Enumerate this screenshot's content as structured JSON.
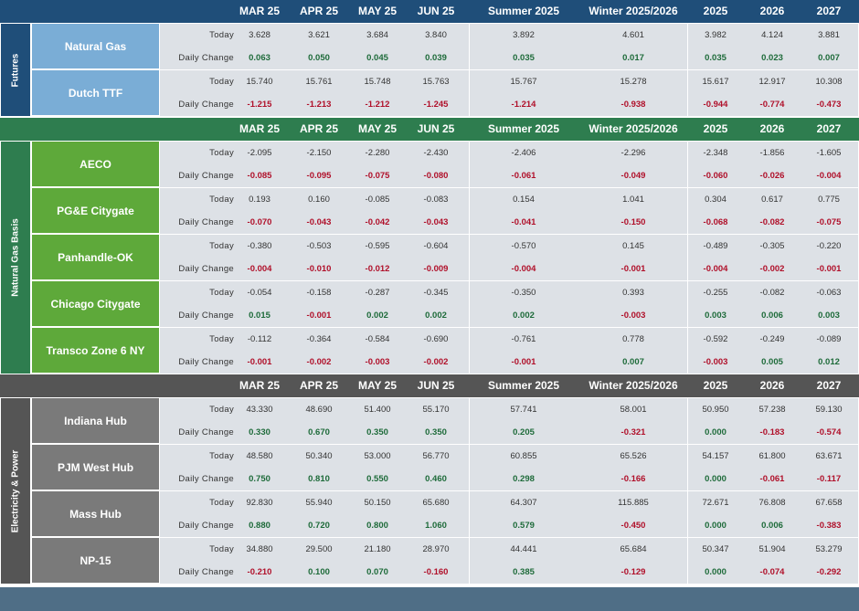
{
  "columns": [
    "MAR 25",
    "APR 25",
    "MAY 25",
    "JUN 25",
    "Summer 2025",
    "Winter 2025/2026",
    "2025",
    "2026",
    "2027"
  ],
  "row_labels": {
    "today": "Today",
    "change": "Daily Change"
  },
  "colors": {
    "futures_header": "#1f4e79",
    "futures_name": "#7aadd6",
    "basis_header": "#2e7d4f",
    "basis_name": "#5ea93a",
    "power_header": "#555555",
    "power_name": "#7a7a7a",
    "positive": "#1e6b3a",
    "negative": "#b0102a",
    "footer": "#4f6e86"
  },
  "chart_data": {
    "type": "table",
    "sections": [
      {
        "title": "Futures",
        "rows": [
          {
            "name": "Natural Gas",
            "today": [
              "3.628",
              "3.621",
              "3.684",
              "3.840",
              "3.892",
              "4.601",
              "3.982",
              "4.124",
              "3.881"
            ],
            "change": [
              "0.063",
              "0.050",
              "0.045",
              "0.039",
              "0.035",
              "0.017",
              "0.035",
              "0.023",
              "0.007"
            ]
          },
          {
            "name": "Dutch TTF",
            "today": [
              "15.740",
              "15.761",
              "15.748",
              "15.763",
              "15.767",
              "15.278",
              "15.617",
              "12.917",
              "10.308"
            ],
            "change": [
              "-1.215",
              "-1.213",
              "-1.212",
              "-1.245",
              "-1.214",
              "-0.938",
              "-0.944",
              "-0.774",
              "-0.473"
            ]
          }
        ]
      },
      {
        "title": "Natural Gas Basis",
        "rows": [
          {
            "name": "AECO",
            "today": [
              "-2.095",
              "-2.150",
              "-2.280",
              "-2.430",
              "-2.406",
              "-2.296",
              "-2.348",
              "-1.856",
              "-1.605"
            ],
            "change": [
              "-0.085",
              "-0.095",
              "-0.075",
              "-0.080",
              "-0.061",
              "-0.049",
              "-0.060",
              "-0.026",
              "-0.004"
            ]
          },
          {
            "name": "PG&E Citygate",
            "today": [
              "0.193",
              "0.160",
              "-0.085",
              "-0.083",
              "0.154",
              "1.041",
              "0.304",
              "0.617",
              "0.775"
            ],
            "change": [
              "-0.070",
              "-0.043",
              "-0.042",
              "-0.043",
              "-0.041",
              "-0.150",
              "-0.068",
              "-0.082",
              "-0.075"
            ]
          },
          {
            "name": "Panhandle-OK",
            "today": [
              "-0.380",
              "-0.503",
              "-0.595",
              "-0.604",
              "-0.570",
              "0.145",
              "-0.489",
              "-0.305",
              "-0.220"
            ],
            "change": [
              "-0.004",
              "-0.010",
              "-0.012",
              "-0.009",
              "-0.004",
              "-0.001",
              "-0.004",
              "-0.002",
              "-0.001"
            ]
          },
          {
            "name": "Chicago Citygate",
            "today": [
              "-0.054",
              "-0.158",
              "-0.287",
              "-0.345",
              "-0.350",
              "0.393",
              "-0.255",
              "-0.082",
              "-0.063"
            ],
            "change": [
              "0.015",
              "-0.001",
              "0.002",
              "0.002",
              "0.002",
              "-0.003",
              "0.003",
              "0.006",
              "0.003"
            ]
          },
          {
            "name": "Transco Zone 6 NY",
            "today": [
              "-0.112",
              "-0.364",
              "-0.584",
              "-0.690",
              "-0.761",
              "0.778",
              "-0.592",
              "-0.249",
              "-0.089"
            ],
            "change": [
              "-0.001",
              "-0.002",
              "-0.003",
              "-0.002",
              "-0.001",
              "0.007",
              "-0.003",
              "0.005",
              "0.012"
            ]
          }
        ]
      },
      {
        "title": "Electricity & Power",
        "rows": [
          {
            "name": "Indiana Hub",
            "today": [
              "43.330",
              "48.690",
              "51.400",
              "55.170",
              "57.741",
              "58.001",
              "50.950",
              "57.238",
              "59.130"
            ],
            "change": [
              "0.330",
              "0.670",
              "0.350",
              "0.350",
              "0.205",
              "-0.321",
              "0.000",
              "-0.183",
              "-0.574"
            ]
          },
          {
            "name": "PJM West Hub",
            "today": [
              "48.580",
              "50.340",
              "53.000",
              "56.770",
              "60.855",
              "65.526",
              "54.157",
              "61.800",
              "63.671"
            ],
            "change": [
              "0.750",
              "0.810",
              "0.550",
              "0.460",
              "0.298",
              "-0.166",
              "0.000",
              "-0.061",
              "-0.117"
            ]
          },
          {
            "name": "Mass Hub",
            "today": [
              "92.830",
              "55.940",
              "50.150",
              "65.680",
              "64.307",
              "115.885",
              "72.671",
              "76.808",
              "67.658"
            ],
            "change": [
              "0.880",
              "0.720",
              "0.800",
              "1.060",
              "0.579",
              "-0.450",
              "0.000",
              "0.006",
              "-0.383"
            ]
          },
          {
            "name": "NP-15",
            "today": [
              "34.880",
              "29.500",
              "21.180",
              "28.970",
              "44.441",
              "65.684",
              "50.347",
              "51.904",
              "53.279"
            ],
            "change": [
              "-0.210",
              "0.100",
              "0.070",
              "-0.160",
              "0.385",
              "-0.129",
              "0.000",
              "-0.074",
              "-0.292"
            ]
          }
        ]
      }
    ]
  }
}
